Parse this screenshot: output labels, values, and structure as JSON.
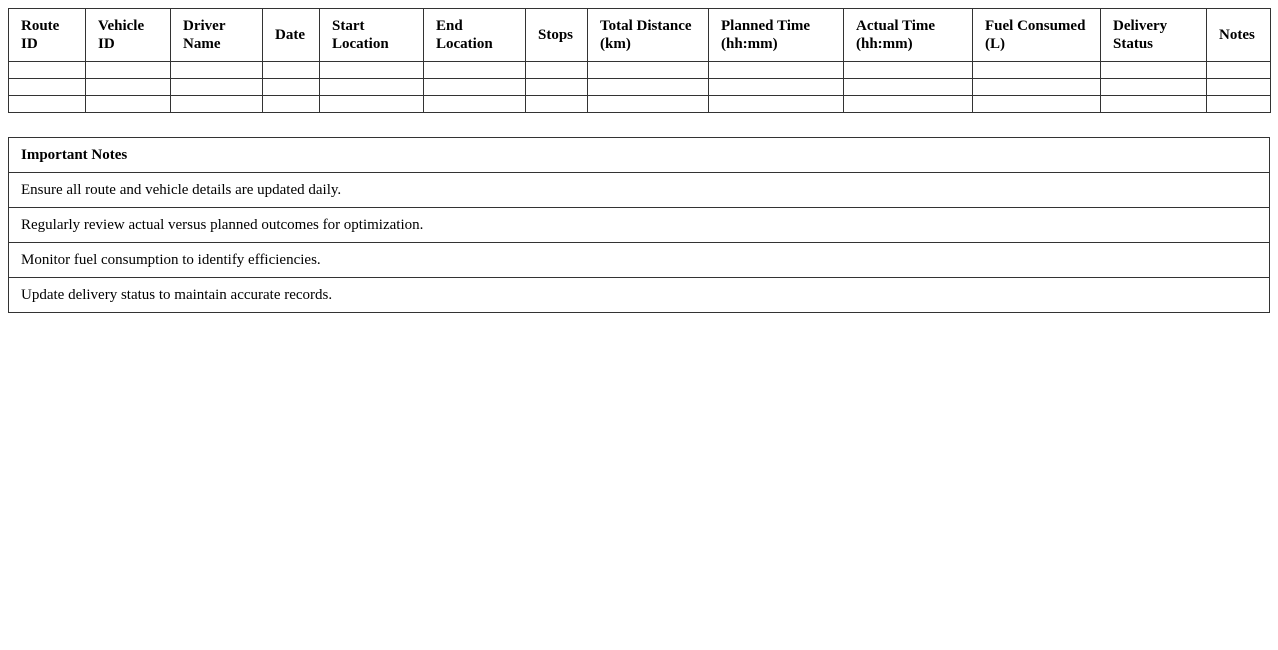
{
  "route_table": {
    "headers": [
      "Route ID",
      "Vehicle ID",
      "Driver Name",
      "Date",
      "Start Location",
      "End Location",
      "Stops",
      "Total Distance (km)",
      "Planned Time (hh:mm)",
      "Actual Time (hh:mm)",
      "Fuel Consumed (L)",
      "Delivery Status",
      "Notes"
    ],
    "rows": [
      [
        "",
        "",
        "",
        "",
        "",
        "",
        "",
        "",
        "",
        "",
        "",
        "",
        ""
      ],
      [
        "",
        "",
        "",
        "",
        "",
        "",
        "",
        "",
        "",
        "",
        "",
        "",
        ""
      ],
      [
        "",
        "",
        "",
        "",
        "",
        "",
        "",
        "",
        "",
        "",
        "",
        "",
        ""
      ]
    ]
  },
  "notes": {
    "title": "Important Notes",
    "items": [
      "Ensure all route and vehicle details are updated daily.",
      "Regularly review actual versus planned outcomes for optimization.",
      "Monitor fuel consumption to identify efficiencies.",
      "Update delivery status to maintain accurate records."
    ]
  }
}
